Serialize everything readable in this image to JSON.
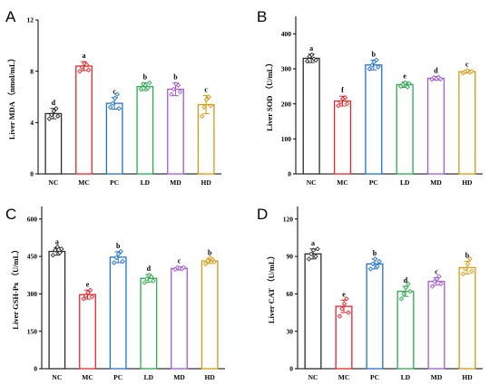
{
  "groups": [
    "NC",
    "MC",
    "PC",
    "LD",
    "MD",
    "HD"
  ],
  "colors": [
    "#2b2b2b",
    "#e8262a",
    "#1f6fd1",
    "#2fa84f",
    "#a25ad6",
    "#d49a12"
  ],
  "chart_data": [
    {
      "type": "bar",
      "panel_label": "A",
      "categories": [
        "NC",
        "MC",
        "PC",
        "LD",
        "MD",
        "HD"
      ],
      "values": [
        4.7,
        8.4,
        5.5,
        6.8,
        6.6,
        5.4
      ],
      "errors": [
        0.4,
        0.35,
        0.45,
        0.3,
        0.5,
        0.7
      ],
      "points": [
        [
          4.3,
          4.6,
          4.9,
          5.1,
          4.5
        ],
        [
          8.0,
          8.3,
          8.6,
          8.5,
          8.1
        ],
        [
          5.2,
          5.5,
          5.9,
          6.2,
          5.1
        ],
        [
          6.6,
          7.0,
          6.9,
          6.7,
          7.1
        ],
        [
          6.2,
          6.6,
          7.0,
          6.9,
          6.4
        ],
        [
          4.5,
          5.2,
          5.8,
          6.0,
          5.3
        ]
      ],
      "letters": [
        "d",
        "a",
        "c",
        "b",
        "b",
        "c"
      ],
      "ylabel": "Liver MDA （nmol/mL）",
      "ylim": [
        0,
        12
      ],
      "yticks": [
        0,
        4,
        8,
        12
      ]
    },
    {
      "type": "bar",
      "panel_label": "B",
      "categories": [
        "NC",
        "MC",
        "PC",
        "LD",
        "MD",
        "HD"
      ],
      "values": [
        330,
        208,
        311,
        255,
        273,
        292
      ],
      "errors": [
        12,
        14,
        14,
        8,
        5,
        4
      ],
      "points": [
        [
          322,
          335,
          340,
          328,
          325
        ],
        [
          195,
          205,
          215,
          218,
          200
        ],
        [
          300,
          310,
          320,
          325,
          305
        ],
        [
          250,
          255,
          260,
          248,
          258
        ],
        [
          270,
          275,
          272,
          276,
          271
        ],
        [
          288,
          292,
          295,
          290,
          293
        ]
      ],
      "letters": [
        "a",
        "f",
        "b",
        "e",
        "d",
        "c"
      ],
      "ylabel": "Liver SOD （U/mL）",
      "ylim": [
        0,
        450
      ],
      "yticks": [
        0,
        100,
        200,
        300,
        400
      ]
    },
    {
      "type": "bar",
      "panel_label": "C",
      "categories": [
        "NC",
        "MC",
        "PC",
        "LD",
        "MD",
        "HD"
      ],
      "values": [
        470,
        297,
        447,
        362,
        402,
        432
      ],
      "errors": [
        15,
        18,
        22,
        16,
        6,
        10
      ],
      "points": [
        [
          455,
          475,
          488,
          465,
          480
        ],
        [
          280,
          292,
          305,
          315,
          288
        ],
        [
          425,
          445,
          460,
          470,
          430
        ],
        [
          345,
          360,
          375,
          368,
          352
        ],
        [
          398,
          405,
          402,
          400,
          406
        ],
        [
          420,
          432,
          445,
          438,
          428
        ]
      ],
      "letters": [
        "a",
        "e",
        "b",
        "d",
        "c",
        "b"
      ],
      "ylabel": "Liver GSH-Px （U/mL）",
      "ylim": [
        0,
        650
      ],
      "yticks": [
        0,
        150,
        300,
        450,
        600
      ]
    },
    {
      "type": "bar",
      "panel_label": "D",
      "categories": [
        "NC",
        "MC",
        "PC",
        "LD",
        "MD",
        "HD"
      ],
      "values": [
        92,
        50,
        84,
        62,
        70,
        81
      ],
      "errors": [
        4,
        5,
        4,
        4,
        3,
        5
      ],
      "points": [
        [
          88,
          92,
          95,
          90,
          96
        ],
        [
          42,
          48,
          52,
          56,
          45
        ],
        [
          80,
          84,
          88,
          82,
          86
        ],
        [
          56,
          60,
          65,
          68,
          62
        ],
        [
          66,
          70,
          72,
          74,
          68
        ],
        [
          76,
          80,
          84,
          88,
          78
        ]
      ],
      "letters": [
        "a",
        "e",
        "b",
        "d",
        "c",
        "b"
      ],
      "ylabel": "Liver CAT （U/mL）",
      "ylim": [
        0,
        130
      ],
      "yticks": [
        0,
        30,
        60,
        90,
        120
      ]
    }
  ]
}
